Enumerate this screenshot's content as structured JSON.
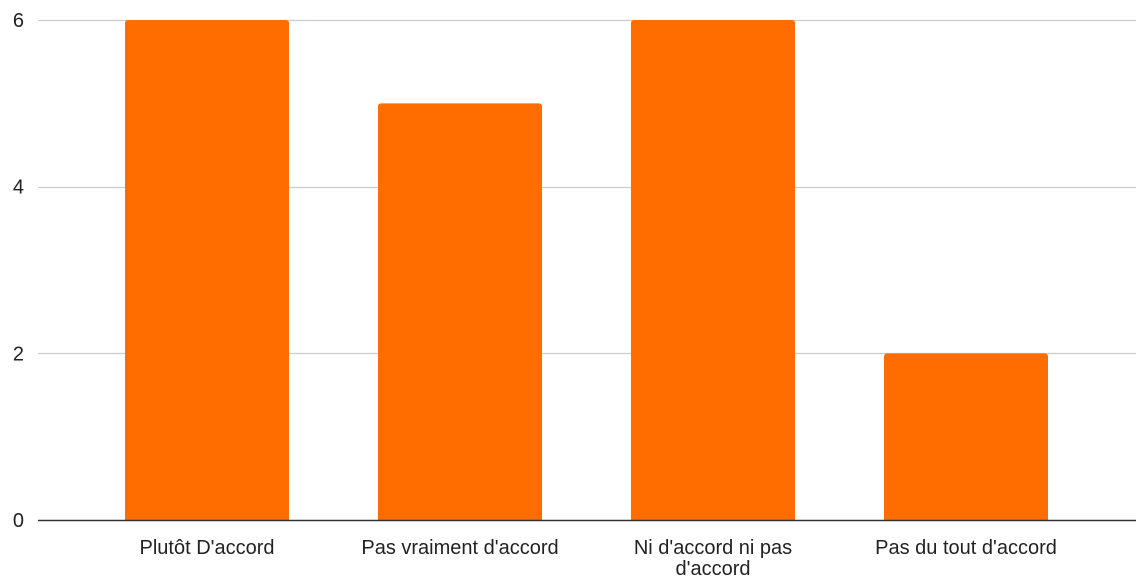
{
  "chart_data": {
    "type": "bar",
    "categories": [
      "Plutôt D'accord",
      "Pas vraiment d'accord",
      "Ni d'accord ni pas d'accord",
      "Pas du tout d'accord"
    ],
    "category_label_lines": [
      [
        "Plutôt D'accord"
      ],
      [
        "Pas vraiment d'accord"
      ],
      [
        "Ni d'accord ni pas",
        "d'accord"
      ],
      [
        "Pas du tout d'accord"
      ]
    ],
    "values": [
      6,
      5,
      6,
      2
    ],
    "ylim": [
      0,
      6
    ],
    "yticks": [
      0,
      2,
      4,
      6
    ],
    "ytick_labels": [
      "0",
      "2",
      "4",
      "6"
    ],
    "grid": true,
    "legend": "none",
    "colors": {
      "bar": "#ff6d01",
      "grid": "#cccccc",
      "axis": "#333333",
      "text": "#222222"
    }
  }
}
